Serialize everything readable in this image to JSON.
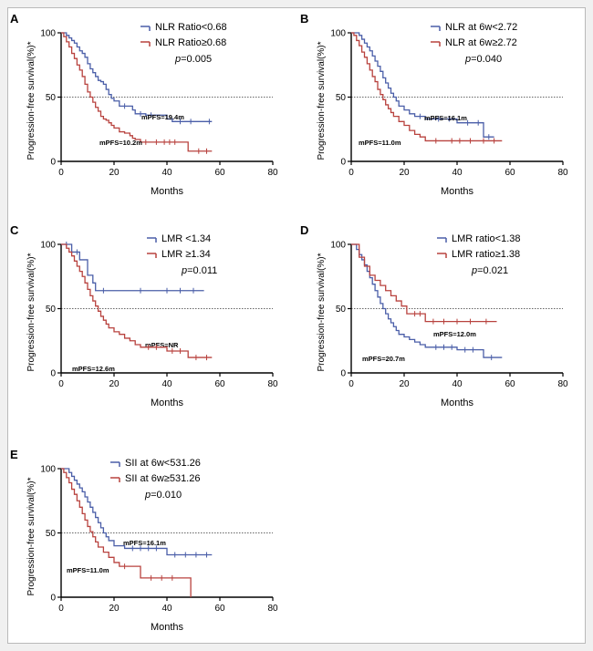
{
  "colors": {
    "blue": "#4a5ea8",
    "red": "#b8423e",
    "axis": "#000000",
    "median_line": "#666666"
  },
  "chart_data": [
    {
      "panel_label": "A",
      "type": "line",
      "subtype": "kaplan-meier",
      "xlabel": "Months",
      "ylabel": "Progression-free survival(%)*",
      "xlim": [
        0,
        80
      ],
      "ylim": [
        0,
        100
      ],
      "xticks": [
        "0",
        "20",
        "40",
        "60",
        "80"
      ],
      "yticks": [
        "0",
        "50",
        "100"
      ],
      "median_line": 50,
      "p_label": "p",
      "p_value": "=0.005",
      "series": [
        {
          "name": "NLR Ratio<0.68",
          "color": "blue",
          "median_label": "mPFS=19.4m",
          "x": [
            0,
            2,
            3,
            4,
            5,
            6,
            7,
            8,
            9,
            10,
            11,
            12,
            13,
            14,
            15,
            16,
            17,
            18,
            19,
            20,
            22,
            27,
            28,
            32,
            40,
            42,
            53,
            57
          ],
          "y": [
            100,
            98,
            96,
            94,
            92,
            89,
            86,
            84,
            81,
            76,
            72,
            69,
            66,
            63,
            62,
            60,
            56,
            52,
            49,
            47,
            43,
            40,
            37,
            36,
            33,
            31,
            31,
            31
          ],
          "censored": [
            [
              24,
              43
            ],
            [
              30,
              37
            ],
            [
              34,
              36
            ],
            [
              45,
              31
            ],
            [
              49,
              31
            ],
            [
              56,
              31
            ]
          ]
        },
        {
          "name": "NLR Ratio≥0.68",
          "color": "red",
          "median_label": "mPFS=10.2m",
          "x": [
            0,
            1,
            2,
            3,
            4,
            5,
            6,
            7,
            8,
            9,
            10,
            11,
            12,
            13,
            14,
            15,
            16,
            17,
            18,
            19,
            20,
            22,
            24,
            26,
            27,
            28,
            30,
            48,
            57
          ],
          "y": [
            100,
            97,
            93,
            89,
            84,
            80,
            75,
            71,
            66,
            60,
            54,
            50,
            46,
            42,
            39,
            35,
            33,
            32,
            30,
            28,
            26,
            23,
            22,
            20,
            18,
            17,
            15,
            8,
            8
          ],
          "censored": [
            [
              32,
              15
            ],
            [
              36,
              15
            ],
            [
              39,
              15
            ],
            [
              41,
              15
            ],
            [
              43,
              15
            ],
            [
              52,
              8
            ],
            [
              55,
              8
            ]
          ]
        }
      ]
    },
    {
      "panel_label": "B",
      "type": "line",
      "subtype": "kaplan-meier",
      "xlabel": "Months",
      "ylabel": "Progression-free survival(%)*",
      "xlim": [
        0,
        80
      ],
      "ylim": [
        0,
        100
      ],
      "xticks": [
        "0",
        "20",
        "40",
        "60",
        "80"
      ],
      "yticks": [
        "0",
        "50",
        "100"
      ],
      "median_line": 50,
      "p_label": "p",
      "p_value": "=0.040",
      "series": [
        {
          "name": "NLR at 6w<2.72",
          "color": "blue",
          "median_label": "mPFS=16.1m",
          "x": [
            0,
            3,
            4,
            5,
            6,
            7,
            8,
            9,
            10,
            11,
            12,
            13,
            14,
            15,
            16,
            17,
            18,
            20,
            22,
            24,
            28,
            30,
            40,
            50,
            54
          ],
          "y": [
            100,
            98,
            95,
            92,
            89,
            86,
            82,
            78,
            74,
            70,
            65,
            61,
            57,
            53,
            50,
            47,
            43,
            40,
            37,
            35,
            33,
            33,
            30,
            19,
            19
          ],
          "censored": [
            [
              26,
              35
            ],
            [
              33,
              33
            ],
            [
              37,
              33
            ],
            [
              44,
              30
            ],
            [
              48,
              30
            ],
            [
              52,
              19
            ]
          ]
        },
        {
          "name": "NLR at 6w≥2.72",
          "color": "red",
          "median_label": "mPFS=11.0m",
          "x": [
            0,
            1,
            2,
            3,
            4,
            5,
            6,
            7,
            8,
            9,
            10,
            11,
            12,
            13,
            14,
            15,
            16,
            18,
            20,
            22,
            24,
            26,
            28,
            57
          ],
          "y": [
            100,
            98,
            94,
            90,
            85,
            81,
            76,
            71,
            66,
            62,
            56,
            52,
            48,
            44,
            41,
            38,
            35,
            31,
            28,
            24,
            21,
            19,
            16,
            16
          ],
          "censored": [
            [
              32,
              16
            ],
            [
              38,
              16
            ],
            [
              41,
              16
            ],
            [
              45,
              16
            ],
            [
              50,
              16
            ],
            [
              54,
              16
            ]
          ]
        }
      ]
    },
    {
      "panel_label": "C",
      "type": "line",
      "subtype": "kaplan-meier",
      "xlabel": "Months",
      "ylabel": "Progression-free survival(%)*",
      "xlim": [
        0,
        80
      ],
      "ylim": [
        0,
        100
      ],
      "xticks": [
        "0",
        "20",
        "40",
        "60",
        "80"
      ],
      "yticks": [
        "0",
        "50",
        "100"
      ],
      "median_line": 50,
      "p_label": "p",
      "p_value": "=0.011",
      "series": [
        {
          "name": "LMR <1.34",
          "color": "blue",
          "median_label": "mPFS=NR",
          "x": [
            0,
            4,
            7,
            10,
            12,
            13,
            54
          ],
          "y": [
            100,
            94,
            88,
            76,
            70,
            64,
            64
          ],
          "censored": [
            [
              2,
              100
            ],
            [
              6,
              94
            ],
            [
              16,
              64
            ],
            [
              30,
              64
            ],
            [
              40,
              64
            ],
            [
              45,
              64
            ],
            [
              50,
              64
            ]
          ]
        },
        {
          "name": "LMR ≥1.34",
          "color": "red",
          "median_label": "mPFS=12.6m",
          "x": [
            0,
            2,
            3,
            4,
            5,
            6,
            7,
            8,
            9,
            10,
            11,
            12,
            13,
            14,
            15,
            16,
            17,
            18,
            20,
            22,
            24,
            26,
            28,
            30,
            40,
            48,
            57
          ],
          "y": [
            100,
            97,
            94,
            91,
            87,
            83,
            79,
            75,
            70,
            65,
            60,
            56,
            52,
            48,
            44,
            41,
            38,
            35,
            32,
            30,
            27,
            25,
            22,
            20,
            17,
            12,
            12
          ],
          "censored": [
            [
              33,
              20
            ],
            [
              36,
              20
            ],
            [
              42,
              17
            ],
            [
              45,
              17
            ],
            [
              51,
              12
            ],
            [
              55,
              12
            ]
          ]
        }
      ]
    },
    {
      "panel_label": "D",
      "type": "line",
      "subtype": "kaplan-meier",
      "xlabel": "Months",
      "ylabel": "Progression-free survival(%)*",
      "xlim": [
        0,
        80
      ],
      "ylim": [
        0,
        100
      ],
      "xticks": [
        "0",
        "20",
        "40",
        "60",
        "80"
      ],
      "yticks": [
        "0",
        "50",
        "100"
      ],
      "median_line": 50,
      "p_label": "p",
      "p_value": "=0.021",
      "series": [
        {
          "name": "LMR ratio<1.38",
          "color": "blue",
          "median_label": "mPFS=12.0m",
          "x": [
            0,
            2,
            3,
            4,
            5,
            6,
            7,
            8,
            9,
            10,
            11,
            12,
            13,
            14,
            15,
            16,
            17,
            18,
            20,
            22,
            24,
            26,
            28,
            40,
            50,
            57
          ],
          "y": [
            100,
            96,
            92,
            88,
            84,
            79,
            74,
            69,
            64,
            59,
            54,
            50,
            46,
            42,
            39,
            36,
            33,
            30,
            28,
            26,
            24,
            22,
            20,
            18,
            12,
            12
          ],
          "censored": [
            [
              32,
              20
            ],
            [
              35,
              20
            ],
            [
              38,
              20
            ],
            [
              43,
              18
            ],
            [
              46,
              18
            ],
            [
              53,
              12
            ]
          ]
        },
        {
          "name": "LMR ratio≥1.38",
          "color": "red",
          "median_label": "mPFS=20.7m",
          "x": [
            0,
            3,
            5,
            7,
            9,
            11,
            13,
            15,
            17,
            19,
            21,
            28,
            55
          ],
          "y": [
            100,
            90,
            83,
            76,
            72,
            68,
            64,
            60,
            56,
            52,
            46,
            40,
            40
          ],
          "censored": [
            [
              24,
              46
            ],
            [
              26,
              46
            ],
            [
              31,
              40
            ],
            [
              35,
              40
            ],
            [
              40,
              40
            ],
            [
              45,
              40
            ],
            [
              51,
              40
            ]
          ]
        }
      ]
    },
    {
      "panel_label": "E",
      "type": "line",
      "subtype": "kaplan-meier",
      "xlabel": "Months",
      "ylabel": "Progression-free survival(%)*",
      "xlim": [
        0,
        80
      ],
      "ylim": [
        0,
        100
      ],
      "xticks": [
        "0",
        "20",
        "40",
        "60",
        "80"
      ],
      "yticks": [
        "0",
        "50",
        "100"
      ],
      "median_line": 50,
      "p_label": "p",
      "p_value": "=0.010",
      "series": [
        {
          "name": "SII at 6w<531.26",
          "color": "blue",
          "median_label": "mPFS=16.1m",
          "x": [
            0,
            3,
            4,
            5,
            6,
            7,
            8,
            9,
            10,
            11,
            12,
            13,
            14,
            15,
            16,
            17,
            18,
            20,
            24,
            40,
            57
          ],
          "y": [
            100,
            97,
            94,
            91,
            88,
            85,
            82,
            78,
            74,
            70,
            66,
            62,
            58,
            54,
            50,
            47,
            44,
            40,
            38,
            33,
            33
          ],
          "censored": [
            [
              27,
              38
            ],
            [
              30,
              38
            ],
            [
              33,
              38
            ],
            [
              36,
              38
            ],
            [
              43,
              33
            ],
            [
              47,
              33
            ],
            [
              51,
              33
            ],
            [
              55,
              33
            ]
          ]
        },
        {
          "name": "SII at 6w≥531.26",
          "color": "red",
          "median_label": "mPFS=11.0m",
          "x": [
            0,
            1,
            2,
            3,
            4,
            5,
            6,
            7,
            8,
            9,
            10,
            11,
            12,
            13,
            14,
            16,
            18,
            20,
            22,
            30,
            49,
            49
          ],
          "y": [
            100,
            97,
            93,
            89,
            84,
            80,
            75,
            70,
            65,
            60,
            55,
            51,
            47,
            43,
            39,
            35,
            31,
            27,
            24,
            15,
            15,
            0
          ],
          "censored": [
            [
              24,
              24
            ],
            [
              34,
              15
            ],
            [
              38,
              15
            ],
            [
              42,
              15
            ]
          ]
        }
      ]
    }
  ]
}
